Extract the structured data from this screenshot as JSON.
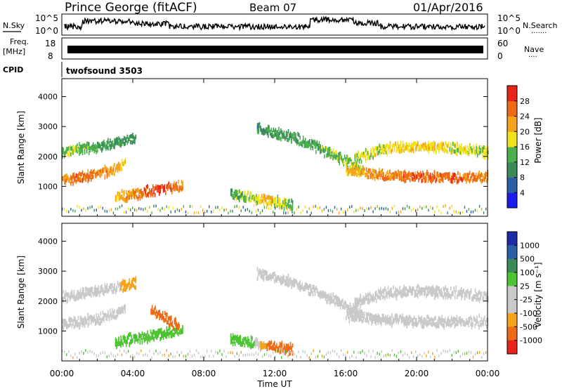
{
  "header": {
    "station": "Prince George (fitACF)",
    "beam": "Beam 07",
    "date": "01/Apr/2016"
  },
  "top_panels": {
    "nsky_label": "N.Sky",
    "nsky_ticks_left": [
      "10^5",
      "10^0"
    ],
    "nsky_ticks_right": [
      "10^5",
      "10^0"
    ],
    "nsearch_label": "N.Search",
    "nsearch_dots": "·······",
    "freq_label_1": "Freq.",
    "freq_label_2": "[MHz]",
    "freq_ticks": [
      "18",
      "8"
    ],
    "nave_ticks": [
      "60",
      "0"
    ],
    "nave_label": "Nave",
    "nave_dots": "····",
    "cpid_label": "CPID",
    "cpid_value": "twofsound 3503"
  },
  "x_axis": {
    "label": "Time UT",
    "ticks": [
      "00:00",
      "04:00",
      "08:00",
      "12:00",
      "16:00",
      "20:00",
      "00:00"
    ]
  },
  "colors": {
    "power": [
      "#1c1cf0",
      "#2a5fa8",
      "#3a8a5a",
      "#4bb04b",
      "#f2e21a",
      "#f4a31c",
      "#ee6a14",
      "#e8231a"
    ],
    "velocity": [
      "#e8231a",
      "#ee6a14",
      "#f4a31c",
      "#c9c9c9",
      "#c9c9c9",
      "#4cc431",
      "#3a8a5a",
      "#2a5fa8",
      "#1c2aa8"
    ]
  },
  "chart_data": [
    {
      "type": "heatmap",
      "title": "Power",
      "ylabel": "Slant Range [km]",
      "xlabel": "",
      "xlim": [
        0,
        24
      ],
      "ylim": [
        0,
        4600
      ],
      "yticks": [
        "1000",
        "2000",
        "3000",
        "4000"
      ],
      "colorbar_label": "Power [dB]",
      "colorbar_ticks": [
        "4",
        "8",
        "12",
        "16",
        "20",
        "24",
        "28"
      ],
      "colorbar_range": [
        0,
        32
      ],
      "features": [
        {
          "name": "lower band early",
          "x": [
            0.0,
            1.0,
            2.0,
            3.0,
            3.6
          ],
          "y": [
            1280,
            1380,
            1480,
            1650,
            1820
          ],
          "power": [
            24,
            26,
            24,
            22,
            18
          ]
        },
        {
          "name": "upper band early",
          "x": [
            0.0,
            1.5,
            3.0,
            4.2
          ],
          "y": [
            2200,
            2350,
            2500,
            2700
          ],
          "power": [
            16,
            14,
            12,
            10
          ]
        },
        {
          "name": "returning patch 04-07",
          "x": [
            3.0,
            4.5,
            5.5,
            6.8
          ],
          "y": [
            700,
            850,
            950,
            1100
          ],
          "power": [
            20,
            26,
            28,
            24
          ]
        },
        {
          "name": "noon patch",
          "x": [
            9.5,
            10.5,
            11.5,
            13.0
          ],
          "y": [
            800,
            700,
            600,
            450
          ],
          "power": [
            12,
            16,
            20,
            14
          ]
        },
        {
          "name": "descending band 13-17",
          "x": [
            11.0,
            13.0,
            15.0,
            17.0
          ],
          "y": [
            3000,
            2700,
            2200,
            1600
          ],
          "power": [
            10,
            12,
            14,
            16
          ]
        },
        {
          "name": "lower band late",
          "x": [
            16.0,
            18.0,
            20.0,
            22.0,
            24.0
          ],
          "y": [
            1600,
            1450,
            1380,
            1350,
            1400
          ],
          "power": [
            20,
            24,
            26,
            26,
            24
          ]
        },
        {
          "name": "upper band late",
          "x": [
            16.5,
            18.0,
            20.0,
            22.0,
            24.0
          ],
          "y": [
            2000,
            2300,
            2400,
            2350,
            2200
          ],
          "power": [
            16,
            18,
            20,
            18,
            16
          ]
        }
      ]
    },
    {
      "type": "heatmap",
      "title": "Velocity",
      "ylabel": "Slant Range [km]",
      "xlabel": "Time UT",
      "xlim": [
        0,
        24
      ],
      "ylim": [
        0,
        4600
      ],
      "yticks": [
        "1000",
        "2000",
        "3000",
        "4000"
      ],
      "colorbar_label": "Velocity [m s⁻¹]",
      "colorbar_ticks": [
        "1000",
        "500",
        "100",
        "25",
        "-25",
        "-100",
        "-500",
        "-1000"
      ],
      "features": [
        {
          "name": "lower band early",
          "x": [
            0.0,
            1.0,
            2.0,
            3.0,
            3.6
          ],
          "y": [
            1280,
            1380,
            1480,
            1650,
            1820
          ],
          "velocity": [
            0,
            0,
            0,
            0,
            0
          ]
        },
        {
          "name": "upper band early",
          "x": [
            0.0,
            1.5,
            3.0,
            4.2
          ],
          "y": [
            2200,
            2350,
            2500,
            2700
          ],
          "velocity": [
            0,
            0,
            0,
            -100
          ]
        },
        {
          "name": "returning patch 04-07",
          "x": [
            3.0,
            4.5,
            5.5,
            6.8
          ],
          "y": [
            700,
            850,
            950,
            1100
          ],
          "velocity": [
            100,
            100,
            100,
            100
          ]
        },
        {
          "name": "orange streak 05-07",
          "x": [
            5.0,
            5.8,
            6.6
          ],
          "y": [
            1800,
            1500,
            1200
          ],
          "velocity": [
            -100,
            -500,
            -100
          ]
        },
        {
          "name": "noon patch",
          "x": [
            9.5,
            10.5,
            11.5,
            13.0
          ],
          "y": [
            800,
            700,
            600,
            450
          ],
          "velocity": [
            100,
            100,
            -100,
            -100
          ]
        },
        {
          "name": "descending band 13-17",
          "x": [
            11.0,
            13.0,
            15.0,
            17.0
          ],
          "y": [
            3000,
            2700,
            2200,
            1600
          ],
          "velocity": [
            0,
            0,
            0,
            0
          ]
        },
        {
          "name": "lower band late",
          "x": [
            16.0,
            18.0,
            20.0,
            22.0,
            24.0
          ],
          "y": [
            1600,
            1450,
            1380,
            1350,
            1400
          ],
          "velocity": [
            0,
            0,
            0,
            0,
            0
          ]
        },
        {
          "name": "upper band late",
          "x": [
            16.5,
            18.0,
            20.0,
            22.0,
            24.0
          ],
          "y": [
            2000,
            2300,
            2400,
            2350,
            2200
          ],
          "velocity": [
            0,
            0,
            0,
            0,
            0
          ]
        }
      ]
    }
  ]
}
